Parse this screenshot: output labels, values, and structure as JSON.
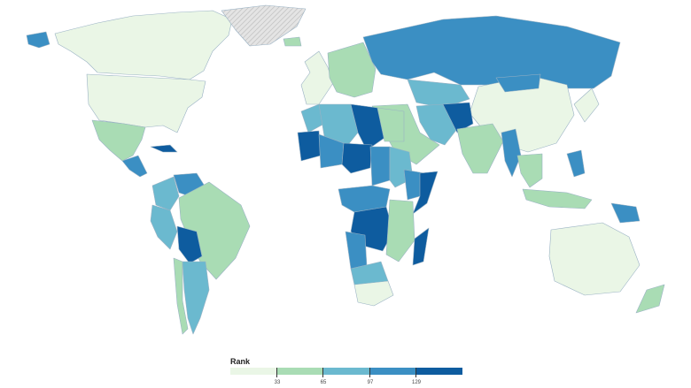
{
  "legend": {
    "title": "Rank",
    "ticks": [
      "33",
      "65",
      "97",
      "129"
    ]
  },
  "colors": {
    "ocean": "#ffffff",
    "no_data": "#e4e4e4",
    "border": "#9ab2c4",
    "scale": [
      "#eaf6e6",
      "#a9dcb4",
      "#6bb9cf",
      "#3b8fc3",
      "#0e5c9f"
    ]
  },
  "regions": [
    {
      "name": "Canada",
      "class": 0
    },
    {
      "name": "Alaska",
      "class": 3
    },
    {
      "name": "Greenland",
      "class": -1
    },
    {
      "name": "United States",
      "class": 0
    },
    {
      "name": "Mexico",
      "class": 1
    },
    {
      "name": "Central America",
      "class": 3
    },
    {
      "name": "Cuba",
      "class": 4
    },
    {
      "name": "Colombia",
      "class": 2
    },
    {
      "name": "Venezuela",
      "class": 3
    },
    {
      "name": "Brazil",
      "class": 1
    },
    {
      "name": "Peru",
      "class": 2
    },
    {
      "name": "Bolivia",
      "class": 4
    },
    {
      "name": "Argentina",
      "class": 2
    },
    {
      "name": "Chile",
      "class": 1
    },
    {
      "name": "Iceland",
      "class": 1
    },
    {
      "name": "Western Europe",
      "class": 0
    },
    {
      "name": "Eastern Europe",
      "class": 1
    },
    {
      "name": "Russia",
      "class": 3
    },
    {
      "name": "Kazakhstan",
      "class": 2
    },
    {
      "name": "China",
      "class": 0
    },
    {
      "name": "Mongolia",
      "class": 3
    },
    {
      "name": "Middle East",
      "class": 1
    },
    {
      "name": "Iran",
      "class": 2
    },
    {
      "name": "Afghanistan",
      "class": 4
    },
    {
      "name": "India",
      "class": 1
    },
    {
      "name": "Myanmar",
      "class": 3
    },
    {
      "name": "Southeast Asia",
      "class": 1
    },
    {
      "name": "Japan",
      "class": 0
    },
    {
      "name": "Indonesia",
      "class": 1
    },
    {
      "name": "Philippines",
      "class": 3
    },
    {
      "name": "Papua New Guinea",
      "class": 3
    },
    {
      "name": "Australia",
      "class": 0
    },
    {
      "name": "New Zealand",
      "class": 1
    },
    {
      "name": "Morocco",
      "class": 2
    },
    {
      "name": "Algeria",
      "class": 2
    },
    {
      "name": "Libya",
      "class": 4
    },
    {
      "name": "Egypt",
      "class": 1
    },
    {
      "name": "Mauritania",
      "class": 4
    },
    {
      "name": "Mali",
      "class": 3
    },
    {
      "name": "Niger",
      "class": 4
    },
    {
      "name": "Chad",
      "class": 3
    },
    {
      "name": "Sudan",
      "class": 2
    },
    {
      "name": "Ethiopia",
      "class": 3
    },
    {
      "name": "Somalia",
      "class": 4
    },
    {
      "name": "Central Africa",
      "class": 3
    },
    {
      "name": "DR Congo",
      "class": 4
    },
    {
      "name": "East Africa",
      "class": 1
    },
    {
      "name": "Angola",
      "class": 3
    },
    {
      "name": "Namibia and Botswana",
      "class": 2
    },
    {
      "name": "South Africa",
      "class": 0
    },
    {
      "name": "Madagascar",
      "class": 4
    }
  ]
}
